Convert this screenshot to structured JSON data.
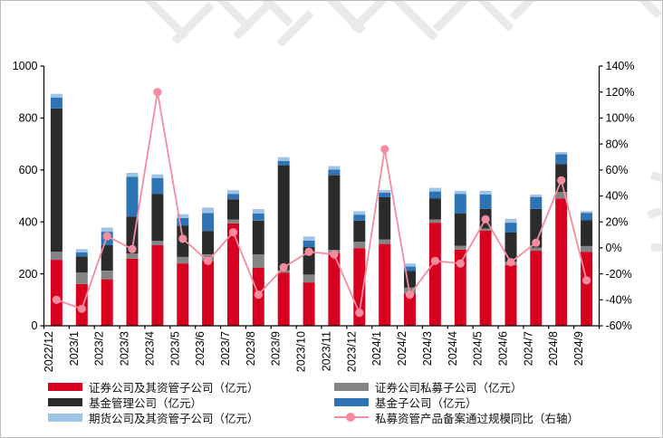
{
  "watermark": {
    "color": "#eaeaea"
  },
  "frame_color": "#bdbdbd",
  "chart_data": {
    "type": "bar",
    "stacked": true,
    "overlay": "line",
    "title": "",
    "grid": false,
    "legend_position": "bottom",
    "categories": [
      "2022/12",
      "2023/1",
      "2023/2",
      "2023/3",
      "2023/4",
      "2023/5",
      "2023/6",
      "2023/7",
      "2023/8",
      "2023/9",
      "2023/10",
      "2023/11",
      "2023/12",
      "2024/1",
      "2024/2",
      "2024/3",
      "2024/4",
      "2024/5",
      "2024/6",
      "2024/7",
      "2024/8",
      "2024/9"
    ],
    "series": [
      {
        "name": "证券公司及其资管子公司（亿元）",
        "kind": "bar",
        "axis": "left",
        "color": "#d7001e",
        "values": [
          254,
          161,
          179,
          258,
          310,
          240,
          250,
          394,
          223,
          205,
          167,
          281,
          299,
          315,
          124,
          397,
          293,
          366,
          234,
          289,
          490,
          285
        ]
      },
      {
        "name": "证券公司私募子公司（亿元）",
        "kind": "bar",
        "axis": "left",
        "color": "#848484",
        "values": [
          31,
          44,
          33,
          20,
          17,
          25,
          25,
          15,
          52,
          8,
          30,
          12,
          25,
          17,
          23,
          12,
          15,
          8,
          12,
          12,
          25,
          22
        ]
      },
      {
        "name": "基金管理公司（亿元）",
        "kind": "bar",
        "axis": "left",
        "color": "#2b2b2b",
        "values": [
          552,
          62,
          98,
          143,
          180,
          120,
          90,
          78,
          130,
          405,
          106,
          288,
          81,
          163,
          64,
          82,
          124,
          76,
          113,
          149,
          108,
          99
        ]
      },
      {
        "name": "基金子公司（亿元）",
        "kind": "bar",
        "axis": "left",
        "color": "#2e74b5",
        "values": [
          42,
          16,
          52,
          153,
          62,
          30,
          69,
          21,
          27,
          16,
          25,
          20,
          23,
          18,
          17,
          26,
          76,
          56,
          38,
          46,
          38,
          29
        ]
      },
      {
        "name": "期货公司及其资管子公司（亿元）",
        "kind": "bar",
        "axis": "left",
        "color": "#9dc3e6",
        "values": [
          14,
          12,
          16,
          15,
          14,
          15,
          21,
          14,
          17,
          15,
          16,
          14,
          13,
          10,
          12,
          14,
          12,
          14,
          15,
          9,
          8,
          6
        ]
      },
      {
        "name": "私募资管产品备案通过规模同比（右轴）",
        "kind": "line",
        "axis": "right",
        "color": "#f48b9f",
        "values": [
          -40,
          -47,
          9,
          -1,
          120,
          7,
          -10,
          12,
          -36,
          -15,
          -3,
          -5,
          -50,
          76,
          -36,
          -10,
          -12,
          22,
          -11,
          4,
          52,
          -25
        ]
      }
    ],
    "left_axis": {
      "min": 0,
      "max": 1000,
      "step": 200,
      "ticks": [
        "0",
        "200",
        "400",
        "600",
        "800",
        "1000"
      ]
    },
    "right_axis": {
      "min": -60,
      "max": 140,
      "step": 20,
      "ticks": [
        "-60%",
        "-40%",
        "-20%",
        "0%",
        "20%",
        "40%",
        "60%",
        "80%",
        "100%",
        "120%",
        "140%"
      ]
    }
  },
  "legend": {
    "column1_series": [
      0,
      2,
      4
    ],
    "column2_series": [
      1,
      3,
      5
    ]
  }
}
